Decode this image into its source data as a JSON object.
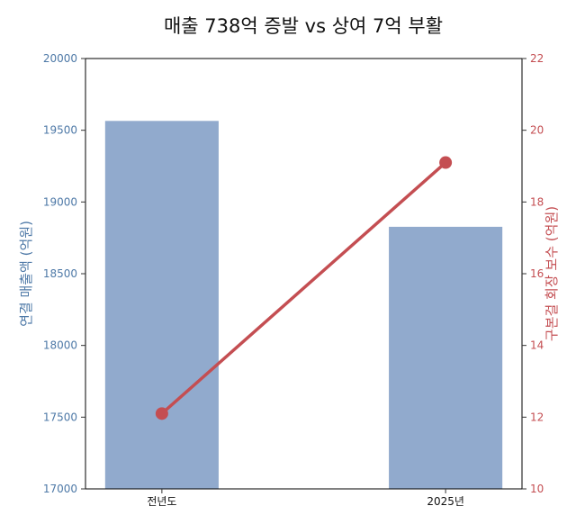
{
  "chart_data": {
    "type": "bar+line",
    "title": "매출 738억 증발 vs 상여 7억 부활",
    "categories": [
      "전년도",
      "2025년"
    ],
    "series": [
      {
        "name": "연결 매출액 (억원)",
        "type": "bar",
        "axis": "left",
        "values": [
          19565,
          18827
        ]
      },
      {
        "name": "구본걸 회장 보수 (억원)",
        "type": "line",
        "axis": "right",
        "values": [
          12.1,
          19.1
        ]
      }
    ],
    "ylabel_left": "연결 매출액 (억원)",
    "ylabel_right": "구본걸 회장 보수 (억원)",
    "ylim_left": [
      17000,
      20000
    ],
    "ylim_right": [
      10,
      22
    ],
    "yticks_left": [
      "17000",
      "17500",
      "18000",
      "18500",
      "19000",
      "19500",
      "20000"
    ],
    "yticks_right": [
      "10",
      "12",
      "14",
      "16",
      "18",
      "20",
      "22"
    ],
    "grid": false,
    "colors": {
      "bar": "#91aacd",
      "line": "#c44e52",
      "left_axis": "#4e79a7",
      "right_axis": "#c44e52"
    }
  }
}
